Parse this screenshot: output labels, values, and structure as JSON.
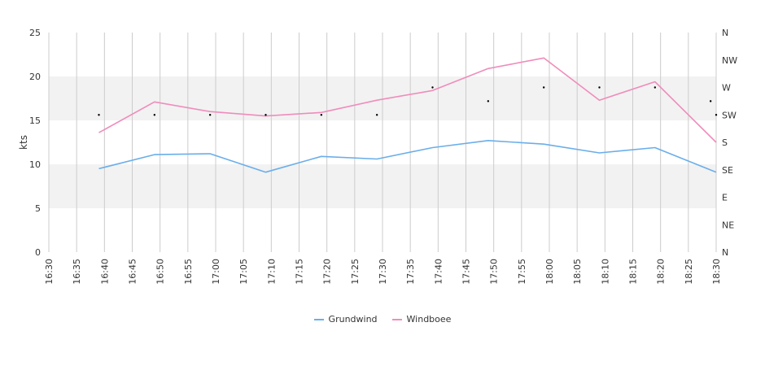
{
  "chart_data": {
    "type": "line",
    "ylabel": "kts",
    "ylim": [
      0,
      25
    ],
    "y_ticks": [
      "0",
      "5",
      "10",
      "15",
      "20",
      "25"
    ],
    "x_ticks": [
      "16:30",
      "16:35",
      "16:40",
      "16:45",
      "16:50",
      "16:55",
      "17:00",
      "17:05",
      "17:10",
      "17:15",
      "17:20",
      "17:25",
      "17:30",
      "17:35",
      "17:40",
      "17:45",
      "17:50",
      "17:55",
      "18:00",
      "18:05",
      "18:10",
      "18:15",
      "18:20",
      "18:25",
      "18:30"
    ],
    "right_axis_ticks": [
      "N",
      "NE",
      "E",
      "SE",
      "S",
      "SW",
      "W",
      "NW",
      "N"
    ],
    "bands": [
      [
        5,
        10
      ],
      [
        15,
        20
      ]
    ],
    "grid": true,
    "legend_position": "bottom",
    "x": [
      "16:39",
      "16:49",
      "16:59",
      "17:09",
      "17:19",
      "17:29",
      "17:39",
      "17:49",
      "17:59",
      "18:09",
      "18:19",
      "18:30"
    ],
    "series": [
      {
        "name": "Grundwind",
        "color": "#6aaeea",
        "values": [
          9.5,
          11.1,
          11.2,
          9.1,
          10.9,
          10.6,
          11.9,
          12.7,
          12.3,
          11.3,
          11.9,
          9.1
        ]
      },
      {
        "name": "Windboee",
        "color": "#f08cbb",
        "values": [
          13.6,
          17.1,
          16.0,
          15.5,
          15.9,
          17.3,
          18.4,
          20.9,
          22.1,
          17.3,
          19.4,
          12.5
        ]
      }
    ],
    "direction_points": [
      {
        "x": "16:39",
        "direction": "SW"
      },
      {
        "x": "16:49",
        "direction": "SW"
      },
      {
        "x": "16:59",
        "direction": "SW"
      },
      {
        "x": "17:09",
        "direction": "SW"
      },
      {
        "x": "17:19",
        "direction": "SW"
      },
      {
        "x": "17:29",
        "direction": "SW"
      },
      {
        "x": "17:39",
        "direction": "W"
      },
      {
        "x": "17:49",
        "direction": "WSW"
      },
      {
        "x": "17:59",
        "direction": "W"
      },
      {
        "x": "18:09",
        "direction": "W"
      },
      {
        "x": "18:19",
        "direction": "W"
      },
      {
        "x": "18:29",
        "direction": "WSW"
      },
      {
        "x": "18:30",
        "direction": "SW"
      }
    ]
  }
}
